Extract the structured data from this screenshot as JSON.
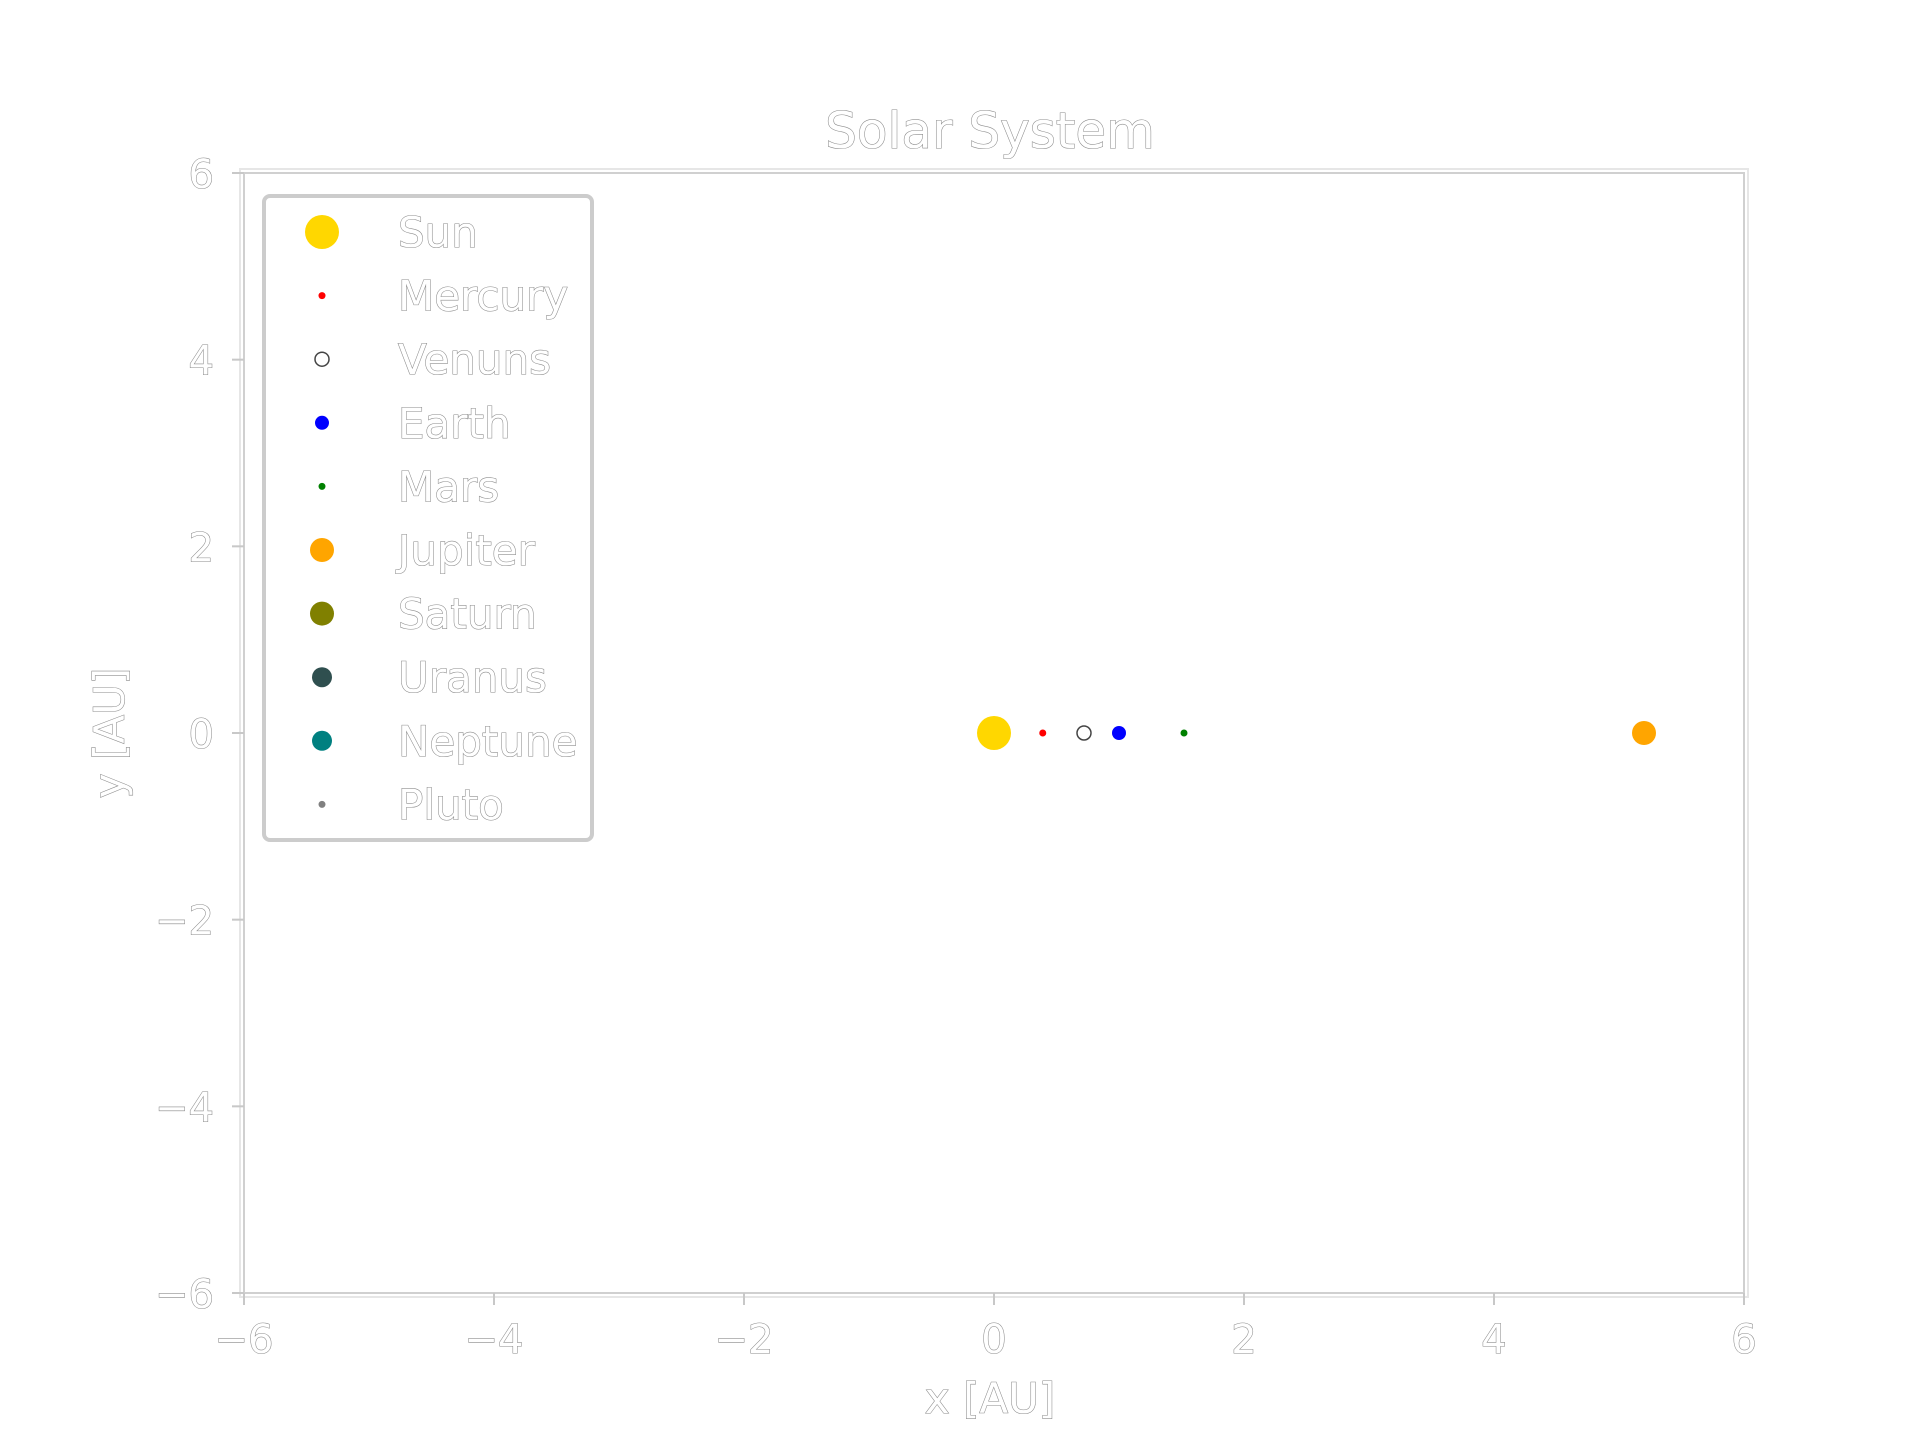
{
  "chart_data": {
    "type": "scatter",
    "title": "Solar System",
    "xlabel": "x [AU]",
    "ylabel": "y [AU]",
    "xlim": [
      -6,
      6
    ],
    "ylim": [
      -6,
      6
    ],
    "xticks": [
      -6,
      -4,
      -2,
      0,
      2,
      4,
      6
    ],
    "yticks": [
      -6,
      -4,
      -2,
      0,
      2,
      4,
      6
    ],
    "xtick_labels": [
      "−6",
      "−4",
      "−2",
      "0",
      "2",
      "4",
      "6"
    ],
    "ytick_labels": [
      "−6",
      "−4",
      "−2",
      "0",
      "2",
      "4",
      "6"
    ],
    "grid": false,
    "legend_position": "top-left",
    "series": [
      {
        "name": "Sun",
        "color": "#FFD700",
        "marker_size": "largest",
        "points": [
          {
            "x": 0.0,
            "y": 0
          }
        ]
      },
      {
        "name": "Mercury",
        "color": "#FF0000",
        "marker_size": "tiny",
        "points": [
          {
            "x": 0.39,
            "y": 0
          }
        ]
      },
      {
        "name": "Venuns",
        "color": "#FFFFFF",
        "outline": "#444444",
        "marker_size": "small",
        "points": [
          {
            "x": 0.72,
            "y": 0
          }
        ]
      },
      {
        "name": "Earth",
        "color": "#0000FF",
        "marker_size": "small",
        "points": [
          {
            "x": 1.0,
            "y": 0
          }
        ]
      },
      {
        "name": "Mars",
        "color": "#008000",
        "marker_size": "tiny",
        "points": [
          {
            "x": 1.52,
            "y": 0
          }
        ]
      },
      {
        "name": "Jupiter",
        "color": "#FFA500",
        "marker_size": "large",
        "points": [
          {
            "x": 5.2,
            "y": 0
          }
        ]
      },
      {
        "name": "Saturn",
        "color": "#808000",
        "marker_size": "large",
        "points": []
      },
      {
        "name": "Uranus",
        "color": "#2F4F4F",
        "marker_size": "medium",
        "points": []
      },
      {
        "name": "Neptune",
        "color": "#008080",
        "marker_size": "medium",
        "points": []
      },
      {
        "name": "Pluto",
        "color": "#808080",
        "marker_size": "tiny",
        "points": []
      }
    ]
  }
}
